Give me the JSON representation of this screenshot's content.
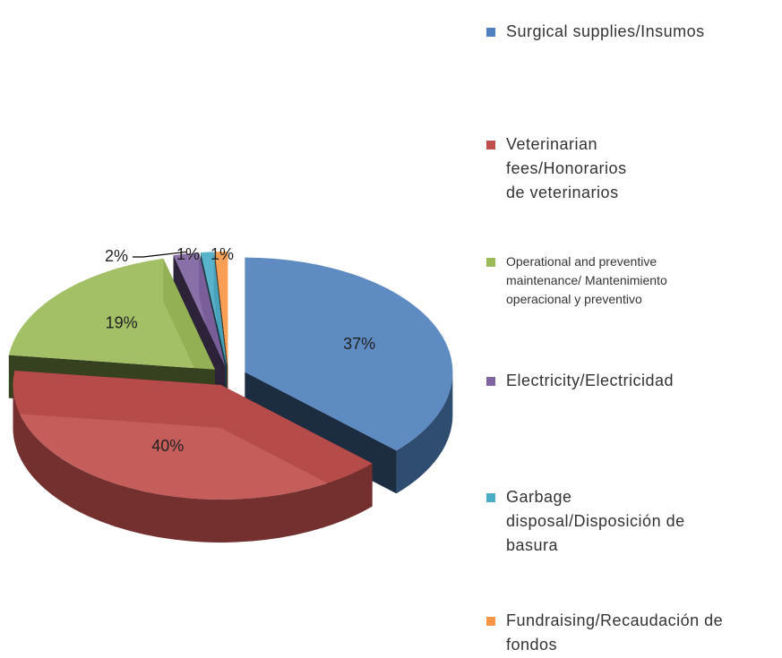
{
  "chart_data": {
    "type": "pie",
    "categories": [
      "Surgical supplies/Insumos",
      "Veterinarian fees/Honorarios de veterinarios",
      "Operational and preventive maintenance/ Mantenimiento operacional y preventivo",
      "Electricity/Electricidad",
      "Garbage disposal/Disposición de basura",
      "Fundraising/Recaudación de fondos"
    ],
    "values": [
      37,
      40,
      19,
      2,
      1,
      1
    ],
    "value_labels": [
      "37%",
      "40%",
      "19%",
      "2%",
      "1%",
      "1%"
    ],
    "colors": [
      "#4f81bd",
      "#c0504d",
      "#9bbb59",
      "#8064a2",
      "#4bacc6",
      "#f79646"
    ],
    "legend": "right"
  }
}
